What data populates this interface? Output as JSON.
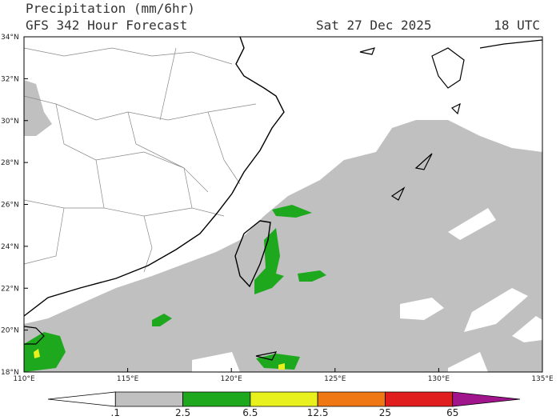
{
  "header": {
    "title": "Precipitation (mm/6hr)",
    "subtitle": "GFS 342 Hour Forecast",
    "date": "Sat 27 Dec 2025",
    "time": "18 UTC"
  },
  "map": {
    "lat_labels": [
      "18°N",
      "20°N",
      "22°N",
      "24°N",
      "26°N",
      "28°N",
      "30°N",
      "32°N",
      "34°N"
    ],
    "lon_labels": [
      "110°E",
      "115°E",
      "120°E",
      "125°E",
      "130°E",
      "135°E"
    ]
  },
  "colorbar": {
    "labels": [
      ".1",
      "2.5",
      "6.5",
      "12.5",
      "25",
      "65"
    ],
    "colors": [
      "#ffffff",
      "#c0c0c0",
      "#1ea81e",
      "#e8f01e",
      "#f07814",
      "#e01e1e",
      "#a0148c"
    ]
  }
}
